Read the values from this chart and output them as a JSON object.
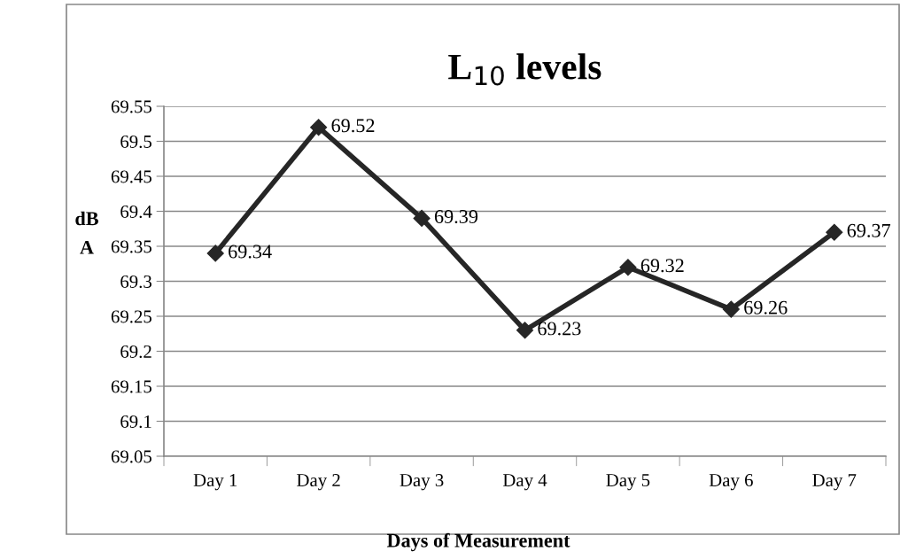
{
  "chart_data": {
    "type": "line",
    "title": "L$_{10}$ levels",
    "xlabel": "Days of Measurement",
    "ylabel": "dB\nA",
    "categories": [
      "Day 1",
      "Day 2",
      "Day 3",
      "Day 4",
      "Day 5",
      "Day 6",
      "Day 7"
    ],
    "series": [
      {
        "color": "#262626",
        "values": [
          69.34,
          69.52,
          69.39,
          69.23,
          69.32,
          69.26,
          69.37
        ]
      }
    ],
    "ylim": [
      69.05,
      69.55
    ],
    "yticks": [
      69.05,
      69.1,
      69.15,
      69.2,
      69.25,
      69.3,
      69.35,
      69.4,
      69.45,
      69.5,
      69.55
    ],
    "grid": "y",
    "marker": "diamond",
    "line_style": "solid",
    "data_labels": true,
    "legend": false
  }
}
